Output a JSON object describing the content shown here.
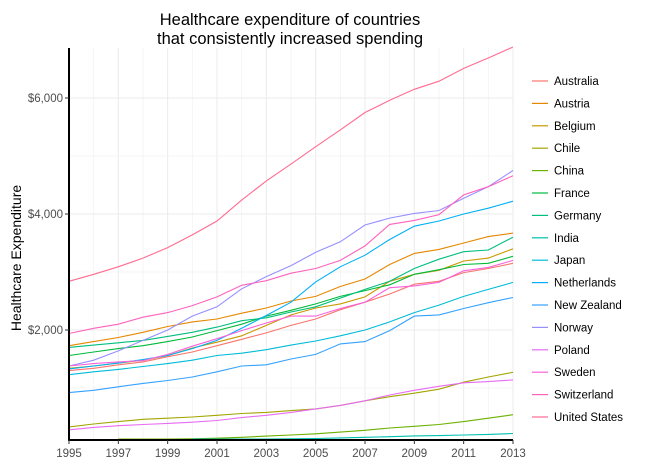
{
  "chart_data": {
    "type": "line",
    "title": [
      "Healthcare expenditure of countries",
      "that consistently increased spending"
    ],
    "xlabel": "",
    "ylabel": "Healthcare Expenditure",
    "xlim": [
      1995,
      2013
    ],
    "ylim": [
      100,
      6870
    ],
    "x_ticks": [
      1995,
      1997,
      1999,
      2001,
      2003,
      2005,
      2007,
      2009,
      2011,
      2013
    ],
    "x_tick_labels": [
      "1995",
      "1997",
      "1999",
      "2001",
      "2003",
      "2005",
      "2007",
      "2009",
      "2011",
      "2013"
    ],
    "y_ticks": [
      2000,
      4000,
      6000
    ],
    "y_tick_labels": [
      "$2,000",
      "$4,000",
      "$6,000"
    ],
    "grid": true,
    "legend_position": "right",
    "x": [
      1995,
      1996,
      1997,
      1998,
      1999,
      2000,
      2001,
      2002,
      2003,
      2004,
      2005,
      2006,
      2007,
      2008,
      2009,
      2010,
      2011,
      2012,
      2013
    ],
    "series": [
      {
        "name": "Australia",
        "color": "#F8766D",
        "values": [
          1300,
          1340,
          1400,
          1450,
          1540,
          1620,
          1730,
          1840,
          1950,
          2080,
          2190,
          2350,
          2480,
          2620,
          2790,
          2840,
          2990,
          3060,
          3150
        ]
      },
      {
        "name": "Austria",
        "color": "#E58700",
        "values": [
          1730,
          1800,
          1870,
          1960,
          2060,
          2140,
          2190,
          2290,
          2380,
          2500,
          2580,
          2750,
          2880,
          3130,
          3320,
          3390,
          3500,
          3610,
          3670
        ]
      },
      {
        "name": "Belgium",
        "color": "#C99800",
        "values": [
          1340,
          1380,
          1430,
          1480,
          1560,
          1690,
          1790,
          1900,
          2080,
          2260,
          2380,
          2450,
          2570,
          2840,
          2960,
          3030,
          3190,
          3240,
          3400
        ]
      },
      {
        "name": "Chile",
        "color": "#A3A500",
        "values": [
          330,
          380,
          420,
          460,
          480,
          500,
          530,
          560,
          580,
          610,
          640,
          700,
          780,
          850,
          910,
          980,
          1100,
          1190,
          1270
        ]
      },
      {
        "name": "China",
        "color": "#6BB100",
        "values": [
          null,
          null,
          105,
          110,
          115,
          125,
          135,
          150,
          170,
          190,
          210,
          240,
          270,
          310,
          340,
          370,
          420,
          480,
          540
        ]
      },
      {
        "name": "France",
        "color": "#00BA38",
        "values": [
          1560,
          1620,
          1680,
          1730,
          1800,
          1880,
          1990,
          2100,
          2240,
          2340,
          2450,
          2580,
          2680,
          2780,
          2960,
          3040,
          3130,
          3150,
          3270
        ]
      },
      {
        "name": "Germany",
        "color": "#00BF7D",
        "values": [
          1700,
          1740,
          1780,
          1820,
          1890,
          1960,
          2050,
          2160,
          2210,
          2310,
          2400,
          2550,
          2700,
          2840,
          3060,
          3220,
          3350,
          3380,
          3600
        ]
      },
      {
        "name": "India",
        "color": "#00C0AF",
        "values": [
          null,
          null,
          null,
          null,
          null,
          110,
          112,
          115,
          118,
          125,
          130,
          140,
          150,
          160,
          175,
          180,
          190,
          200,
          215
        ]
      },
      {
        "name": "Japan",
        "color": "#00BCD8",
        "values": [
          1230,
          1280,
          1320,
          1370,
          1420,
          1480,
          1560,
          1600,
          1660,
          1740,
          1810,
          1900,
          2000,
          2140,
          2300,
          2430,
          2580,
          2700,
          2820
        ]
      },
      {
        "name": "Netherlands",
        "color": "#00B0F6",
        "values": [
          1330,
          1380,
          1430,
          1490,
          1560,
          1680,
          1820,
          2030,
          2250,
          2480,
          2830,
          3090,
          3290,
          3560,
          3790,
          3880,
          4000,
          4100,
          4220
        ]
      },
      {
        "name": "New Zealand",
        "color": "#35A2FF",
        "values": [
          920,
          960,
          1020,
          1080,
          1130,
          1190,
          1280,
          1380,
          1400,
          1500,
          1580,
          1760,
          1800,
          1990,
          2240,
          2260,
          2370,
          2470,
          2560
        ]
      },
      {
        "name": "Norway",
        "color": "#9590FF",
        "values": [
          1380,
          1480,
          1640,
          1820,
          2000,
          2240,
          2400,
          2710,
          2920,
          3110,
          3340,
          3520,
          3810,
          3930,
          4010,
          4060,
          4270,
          4470,
          4750
        ]
      },
      {
        "name": "Poland",
        "color": "#D89000",
        "colorOverride": "#E76BF3",
        "values": [
          280,
          320,
          350,
          370,
          390,
          410,
          440,
          490,
          530,
          580,
          640,
          700,
          780,
          880,
          960,
          1030,
          1090,
          1110,
          1140
        ]
      },
      {
        "name": "Sweden",
        "color": "#FA62DB",
        "values": [
          1380,
          1420,
          1450,
          1470,
          1580,
          1720,
          1850,
          1990,
          2120,
          2240,
          2240,
          2370,
          2480,
          2730,
          2760,
          2820,
          3020,
          3080,
          3200
        ]
      },
      {
        "name": "Switzerland",
        "color": "#FF62BC",
        "values": [
          1940,
          2030,
          2100,
          2220,
          2300,
          2420,
          2570,
          2770,
          2850,
          2980,
          3060,
          3200,
          3450,
          3820,
          3890,
          3990,
          4330,
          4470,
          4660
        ]
      },
      {
        "name": "United States",
        "color": "#FF6C91",
        "values": [
          2840,
          2960,
          3090,
          3240,
          3420,
          3640,
          3880,
          4240,
          4570,
          4860,
          5160,
          5450,
          5750,
          5960,
          6150,
          6290,
          6510,
          6690,
          6880
        ]
      }
    ]
  }
}
